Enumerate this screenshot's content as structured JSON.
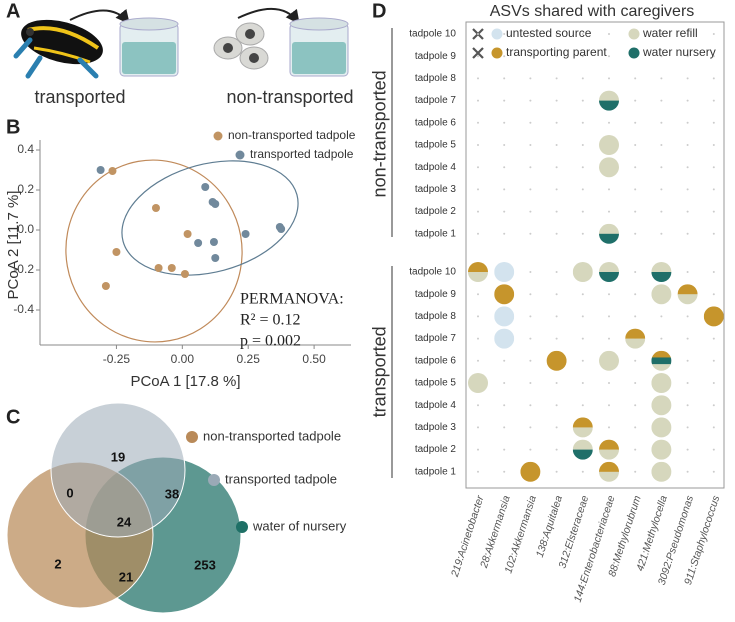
{
  "panel_labels": [
    "A",
    "B",
    "C",
    "D"
  ],
  "illustration": {
    "labels": [
      "transported",
      "non-transported"
    ]
  },
  "chart_data": [
    {
      "type": "scatter",
      "xlabel": "PCoA 1 [17.8 %]",
      "ylabel": "PCoA 2 [11.7 %]",
      "xlim": [
        -0.54,
        0.64
      ],
      "ylim": [
        -0.575,
        0.45
      ],
      "xticks": [
        -0.25,
        {
          "value": 0,
          "label": "0.00"
        },
        0.25,
        {
          "value": 0.5,
          "label": "0.50"
        }
      ],
      "yticks": [
        0.4,
        0.2,
        {
          "value": 0,
          "label": "0.0"
        },
        -0.2,
        -0.4
      ],
      "series": [
        {
          "name": "non-transported tadpole",
          "color": "#c19463",
          "x": [
            -0.265,
            -0.1,
            -0.25,
            -0.29,
            -0.09,
            -0.04,
            0.02,
            0.01
          ],
          "values": [
            0.295,
            0.11,
            -0.11,
            -0.28,
            -0.19,
            -0.19,
            -0.02,
            -0.22
          ]
        },
        {
          "name": "transported tadpole",
          "color": "#71899c",
          "x": [
            -0.31,
            0.087,
            0.115,
            0.125,
            0.06,
            0.12,
            0.125,
            0.24,
            0.37,
            0.375
          ],
          "values": [
            0.3,
            0.215,
            0.14,
            0.13,
            -0.065,
            -0.06,
            -0.14,
            -0.02,
            0.015,
            0.005
          ]
        }
      ],
      "annotations": [
        "PERMANOVA:",
        "R² = 0.12",
        "p = 0.002"
      ]
    },
    {
      "type": "venn",
      "sets": [
        {
          "name": "non-transported tadpole",
          "color": "#b98a59"
        },
        {
          "name": "transported tadpole",
          "color": "#9aa9b6"
        },
        {
          "name": "water of nursery",
          "color": "#1e7066"
        }
      ],
      "values": [
        19,
        0,
        38,
        24,
        2,
        21,
        253
      ]
    },
    {
      "type": "dotmatrix",
      "title": "ASVs shared with caregivers",
      "groups": [
        "non-transported",
        "transported"
      ],
      "rows": [
        "tadpole 10",
        "tadpole 9",
        "tadpole 8",
        "tadpole 7",
        "tadpole 6",
        "tadpole 5",
        "tadpole 4",
        "tadpole 3",
        "tadpole 2",
        "tadpole 1",
        "tadpole 10",
        "tadpole 9",
        "tadpole 8",
        "tadpole 7",
        "tadpole 6",
        "tadpole 5",
        "tadpole 4",
        "tadpole 3",
        "tadpole 2",
        "tadpole 1"
      ],
      "categories": [
        "219:Acinetobacter",
        "28:Akkermansia",
        "102:Akkermansia",
        "138:Aquitalea",
        "312:Elsteraceae",
        "144:Enterobacteriaceae",
        "88:Methylorubrum",
        "421:Methylocella",
        "3092:Pseudomonas",
        "911:Staphylococcus"
      ],
      "legend": [
        {
          "name": "untested source",
          "color": "#d3e3ee"
        },
        {
          "name": "transporting parent",
          "color": "#c6952c"
        },
        {
          "name": "water refill",
          "color": "#d6d7bd"
        },
        {
          "name": "water nursery",
          "color": "#1f6f69"
        }
      ],
      "cells": [
        [
          3,
          5,
          [
            2,
            3
          ]
        ],
        [
          5,
          5,
          [
            2
          ]
        ],
        [
          6,
          5,
          [
            2
          ]
        ],
        [
          9,
          5,
          [
            2,
            3
          ]
        ],
        [
          10,
          0,
          [
            1,
            2
          ]
        ],
        [
          10,
          1,
          [
            0
          ]
        ],
        [
          10,
          4,
          [
            2
          ]
        ],
        [
          10,
          5,
          [
            2,
            3
          ]
        ],
        [
          10,
          7,
          [
            2,
            3
          ]
        ],
        [
          11,
          1,
          [
            1
          ]
        ],
        [
          11,
          7,
          [
            2
          ]
        ],
        [
          11,
          8,
          [
            1,
            2
          ]
        ],
        [
          12,
          1,
          [
            0
          ]
        ],
        [
          12,
          9,
          [
            1
          ]
        ],
        [
          13,
          1,
          [
            0
          ]
        ],
        [
          13,
          6,
          [
            1,
            2
          ]
        ],
        [
          14,
          3,
          [
            1
          ]
        ],
        [
          14,
          5,
          [
            2
          ]
        ],
        [
          14,
          7,
          [
            1,
            3,
            2
          ]
        ],
        [
          15,
          0,
          [
            2
          ]
        ],
        [
          15,
          7,
          [
            2
          ]
        ],
        [
          16,
          7,
          [
            2
          ]
        ],
        [
          17,
          4,
          [
            1,
            2
          ]
        ],
        [
          17,
          7,
          [
            2
          ]
        ],
        [
          18,
          4,
          [
            2,
            3
          ]
        ],
        [
          18,
          5,
          [
            1,
            2
          ]
        ],
        [
          18,
          7,
          [
            2
          ]
        ],
        [
          19,
          2,
          [
            1
          ]
        ],
        [
          19,
          5,
          [
            1,
            2
          ]
        ],
        [
          19,
          7,
          [
            2
          ]
        ]
      ]
    }
  ]
}
